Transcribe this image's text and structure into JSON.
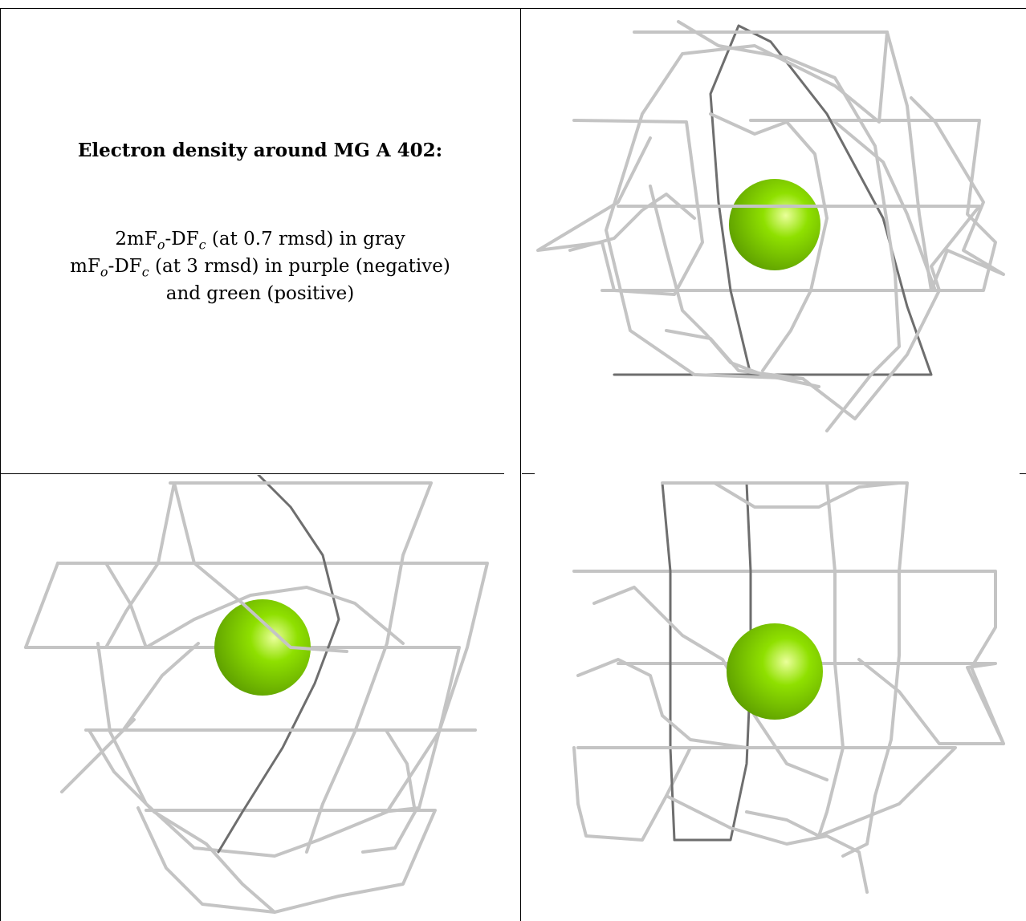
{
  "caption": {
    "title": "Electron density around MG A 402:",
    "line1_prefix": "2mF",
    "line1_mid": "-DF",
    "line1_suffix": " (at 0.7 rmsd) in gray",
    "line2_prefix": "mF",
    "line2_mid": "-DF",
    "line2_suffix": " (at 3 rmsd) in purple (negative)",
    "line3": "and green (positive)",
    "sub_o": "o",
    "sub_c": "c"
  },
  "colors": {
    "mesh": "#c4c4c4",
    "mesh_dark": "#6e6e6e",
    "ion": "#8fe000",
    "ion_highlight": "#eaff9a",
    "border": "#000000"
  }
}
